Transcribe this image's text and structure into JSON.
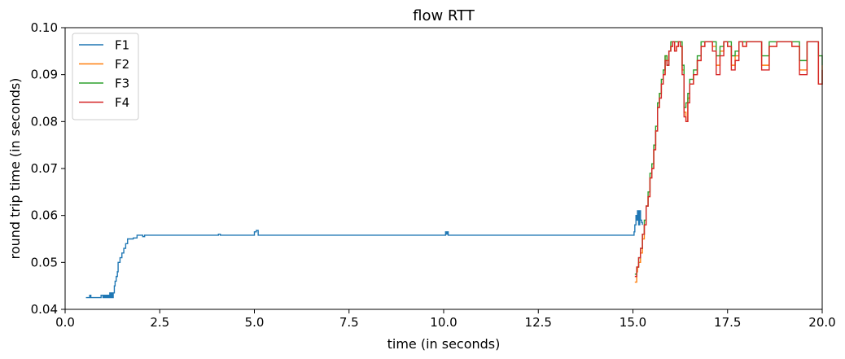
{
  "chart_data": {
    "type": "line",
    "title": "flow RTT",
    "xlabel": "time (in seconds)",
    "ylabel": "round trip time (in seconds)",
    "xlim": [
      0.0,
      20.0
    ],
    "ylim": [
      0.04,
      0.1
    ],
    "x_ticks": [
      0.0,
      2.5,
      5.0,
      7.5,
      10.0,
      12.5,
      15.0,
      17.5,
      20.0
    ],
    "x_tick_labels": [
      "0.0",
      "2.5",
      "5.0",
      "7.5",
      "10.0",
      "12.5",
      "15.0",
      "17.5",
      "20.0"
    ],
    "y_ticks": [
      0.04,
      0.05,
      0.06,
      0.07,
      0.08,
      0.09,
      0.1
    ],
    "y_tick_labels": [
      "0.04",
      "0.05",
      "0.06",
      "0.07",
      "0.08",
      "0.09",
      "0.10"
    ],
    "grid": false,
    "legend_position": "top-left",
    "series": [
      {
        "name": "F1",
        "color": "#1f77b4",
        "x": [
          0.55,
          0.62,
          0.65,
          0.68,
          0.7,
          0.72,
          0.75,
          0.85,
          0.92,
          0.95,
          1.0,
          1.02,
          1.05,
          1.08,
          1.1,
          1.12,
          1.15,
          1.18,
          1.2,
          1.22,
          1.25,
          1.27,
          1.3,
          1.32,
          1.35,
          1.38,
          1.4,
          1.45,
          1.5,
          1.55,
          1.6,
          1.65,
          1.7,
          1.8,
          1.9,
          2.0,
          2.05,
          2.1,
          2.5,
          3.0,
          3.5,
          4.0,
          4.05,
          4.1,
          4.5,
          4.95,
          5.0,
          5.05,
          5.1,
          5.5,
          6.0,
          7.0,
          8.0,
          9.0,
          10.0,
          10.05,
          10.08,
          10.1,
          10.12,
          10.15,
          11.0,
          12.0,
          13.0,
          14.0,
          15.0,
          15.03,
          15.05,
          15.08,
          15.1,
          15.12,
          15.15,
          15.18,
          15.2,
          15.23,
          15.25
        ],
        "y": [
          0.0425,
          0.0425,
          0.043,
          0.0425,
          0.0425,
          0.0425,
          0.0425,
          0.0425,
          0.0425,
          0.043,
          0.0425,
          0.043,
          0.0425,
          0.043,
          0.0425,
          0.043,
          0.0425,
          0.0435,
          0.0425,
          0.0435,
          0.0425,
          0.0435,
          0.045,
          0.046,
          0.047,
          0.048,
          0.05,
          0.051,
          0.052,
          0.053,
          0.054,
          0.055,
          0.055,
          0.0552,
          0.0558,
          0.0558,
          0.0555,
          0.0558,
          0.0558,
          0.0558,
          0.0558,
          0.0558,
          0.056,
          0.0558,
          0.0558,
          0.0558,
          0.0565,
          0.0568,
          0.0558,
          0.0558,
          0.0558,
          0.0558,
          0.0558,
          0.0558,
          0.0558,
          0.0565,
          0.056,
          0.0565,
          0.0558,
          0.0558,
          0.0558,
          0.0558,
          0.0558,
          0.0558,
          0.0558,
          0.0565,
          0.058,
          0.06,
          0.059,
          0.061,
          0.058,
          0.061,
          0.059,
          0.0585,
          0.058
        ]
      },
      {
        "name": "F2",
        "color": "#ff7f0e",
        "x": [
          15.05,
          15.08,
          15.1,
          15.12,
          15.15,
          15.2,
          15.25,
          15.3,
          15.35,
          15.4,
          15.45,
          15.5,
          15.55,
          15.6,
          15.65,
          15.7,
          15.75,
          15.8,
          15.85,
          15.9,
          15.95,
          16.0,
          16.05,
          16.1,
          16.15,
          16.2,
          16.25,
          16.3,
          16.35,
          16.4,
          16.45,
          16.5,
          16.6,
          16.7,
          16.8,
          16.9,
          17.0,
          17.1,
          17.2,
          17.3,
          17.4,
          17.5,
          17.6,
          17.7,
          17.8,
          17.9,
          18.0,
          18.2,
          18.4,
          18.6,
          18.8,
          19.0,
          19.2,
          19.4,
          19.6,
          19.8,
          19.9,
          20.0
        ],
        "y": [
          0.0458,
          0.0458,
          0.048,
          0.049,
          0.05,
          0.052,
          0.055,
          0.058,
          0.062,
          0.064,
          0.068,
          0.07,
          0.074,
          0.078,
          0.083,
          0.086,
          0.088,
          0.09,
          0.094,
          0.093,
          0.095,
          0.096,
          0.097,
          0.095,
          0.096,
          0.097,
          0.096,
          0.091,
          0.082,
          0.08,
          0.085,
          0.088,
          0.09,
          0.093,
          0.096,
          0.097,
          0.097,
          0.096,
          0.092,
          0.095,
          0.097,
          0.096,
          0.092,
          0.094,
          0.097,
          0.096,
          0.097,
          0.097,
          0.092,
          0.096,
          0.097,
          0.097,
          0.096,
          0.091,
          0.097,
          0.097,
          0.088,
          0.092
        ]
      },
      {
        "name": "F3",
        "color": "#2ca02c",
        "x": [
          15.05,
          15.1,
          15.15,
          15.2,
          15.25,
          15.3,
          15.35,
          15.4,
          15.45,
          15.5,
          15.55,
          15.6,
          15.65,
          15.7,
          15.75,
          15.8,
          15.85,
          15.9,
          15.95,
          16.0,
          16.05,
          16.1,
          16.15,
          16.2,
          16.25,
          16.3,
          16.35,
          16.4,
          16.45,
          16.5,
          16.6,
          16.7,
          16.8,
          16.9,
          17.0,
          17.1,
          17.2,
          17.3,
          17.4,
          17.5,
          17.6,
          17.7,
          17.8,
          17.9,
          18.0,
          18.2,
          18.4,
          18.6,
          18.8,
          19.0,
          19.2,
          19.4,
          19.6,
          19.8,
          19.9,
          20.0
        ],
        "y": [
          0.0475,
          0.049,
          0.051,
          0.053,
          0.056,
          0.059,
          0.062,
          0.065,
          0.069,
          0.071,
          0.075,
          0.079,
          0.084,
          0.086,
          0.089,
          0.091,
          0.094,
          0.092,
          0.095,
          0.097,
          0.097,
          0.097,
          0.097,
          0.097,
          0.097,
          0.092,
          0.083,
          0.084,
          0.086,
          0.089,
          0.091,
          0.094,
          0.097,
          0.097,
          0.097,
          0.097,
          0.094,
          0.096,
          0.097,
          0.097,
          0.094,
          0.095,
          0.097,
          0.097,
          0.097,
          0.097,
          0.094,
          0.097,
          0.097,
          0.097,
          0.097,
          0.093,
          0.097,
          0.097,
          0.094,
          0.092
        ]
      },
      {
        "name": "F4",
        "color": "#d62728",
        "x": [
          15.05,
          15.1,
          15.15,
          15.2,
          15.25,
          15.3,
          15.35,
          15.4,
          15.45,
          15.5,
          15.55,
          15.6,
          15.65,
          15.7,
          15.75,
          15.8,
          15.85,
          15.9,
          15.95,
          16.0,
          16.05,
          16.1,
          16.15,
          16.2,
          16.25,
          16.3,
          16.35,
          16.4,
          16.45,
          16.5,
          16.6,
          16.7,
          16.8,
          16.9,
          17.0,
          17.1,
          17.2,
          17.3,
          17.4,
          17.5,
          17.6,
          17.7,
          17.8,
          17.9,
          18.0,
          18.2,
          18.4,
          18.6,
          18.8,
          19.0,
          19.2,
          19.4,
          19.6,
          19.8,
          19.9,
          20.0
        ],
        "y": [
          0.047,
          0.049,
          0.051,
          0.053,
          0.056,
          0.058,
          0.062,
          0.064,
          0.068,
          0.07,
          0.074,
          0.078,
          0.083,
          0.085,
          0.088,
          0.09,
          0.093,
          0.092,
          0.095,
          0.096,
          0.097,
          0.095,
          0.096,
          0.097,
          0.096,
          0.09,
          0.081,
          0.08,
          0.084,
          0.088,
          0.09,
          0.093,
          0.096,
          0.097,
          0.097,
          0.095,
          0.09,
          0.094,
          0.097,
          0.096,
          0.091,
          0.093,
          0.097,
          0.096,
          0.097,
          0.097,
          0.091,
          0.096,
          0.097,
          0.097,
          0.096,
          0.09,
          0.097,
          0.097,
          0.088,
          0.091
        ]
      }
    ]
  }
}
